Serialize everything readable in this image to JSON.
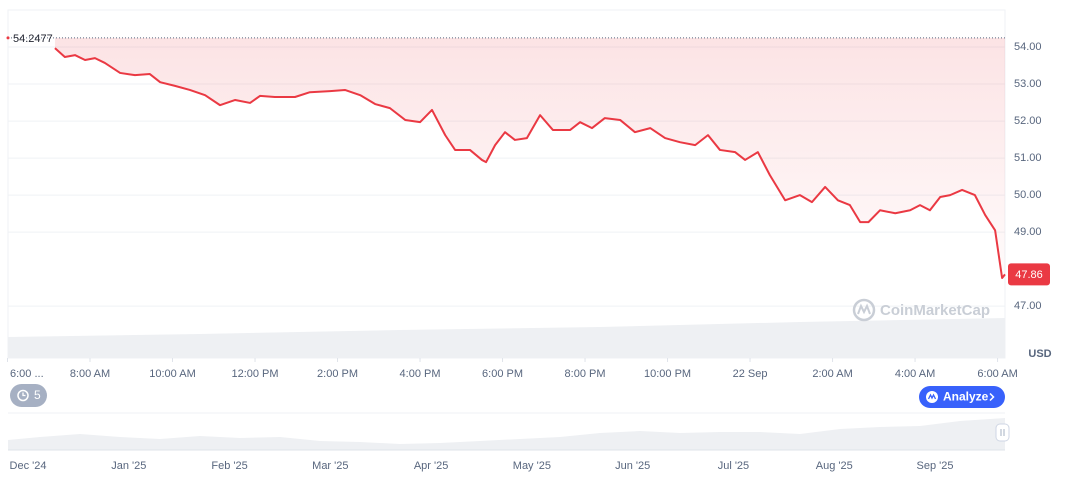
{
  "chart_data": {
    "type": "line",
    "x": [
      1.15,
      1.39,
      1.64,
      1.88,
      2.12,
      2.36,
      2.73,
      3.09,
      3.45,
      3.7,
      4.06,
      4.42,
      4.79,
      5.15,
      5.52,
      5.88,
      6.12,
      6.48,
      6.97,
      7.33,
      7.82,
      8.18,
      8.55,
      8.91,
      9.27,
      9.64,
      10.0,
      10.29,
      10.61,
      10.85,
      11.21,
      11.5,
      11.6,
      11.82,
      12.06,
      12.3,
      12.59,
      12.91,
      13.22,
      13.64,
      13.88,
      14.17,
      14.48,
      14.85,
      15.21,
      15.58,
      15.94,
      16.3,
      16.67,
      16.98,
      17.27,
      17.64,
      17.88,
      18.19,
      18.48,
      18.85,
      19.21,
      19.5,
      19.82,
      20.13,
      20.42,
      20.67,
      20.87,
      21.15,
      21.52,
      21.88,
      22.12,
      22.36,
      22.61,
      22.85,
      23.14,
      23.45,
      23.7,
      23.94,
      24.11,
      24.18
    ],
    "series": [
      {
        "color": "#ea3943",
        "values": [
          53.97,
          53.73,
          53.78,
          53.65,
          53.7,
          53.57,
          53.3,
          53.24,
          53.27,
          53.05,
          52.95,
          52.84,
          52.7,
          52.43,
          52.57,
          52.49,
          52.68,
          52.65,
          52.65,
          52.78,
          52.81,
          52.84,
          52.7,
          52.46,
          52.35,
          52.03,
          51.97,
          52.3,
          51.62,
          51.22,
          51.22,
          50.95,
          50.89,
          51.35,
          51.7,
          51.49,
          51.54,
          52.16,
          51.76,
          51.76,
          51.97,
          51.81,
          52.08,
          52.03,
          51.7,
          51.81,
          51.54,
          51.43,
          51.35,
          51.62,
          51.22,
          51.16,
          50.95,
          51.16,
          50.54,
          49.86,
          50.0,
          49.81,
          50.22,
          49.86,
          49.73,
          49.27,
          49.27,
          49.59,
          49.51,
          49.59,
          49.73,
          49.59,
          49.95,
          50.0,
          50.14,
          50.0,
          49.46,
          49.05,
          47.76,
          47.86
        ]
      }
    ],
    "xlim": [
      0,
      24.18
    ],
    "xticks": [
      {
        "value": 0,
        "label": "6:00 ..."
      },
      {
        "value": 2,
        "label": "8:00 AM"
      },
      {
        "value": 4,
        "label": "10:00 AM"
      },
      {
        "value": 6,
        "label": "12:00 PM"
      },
      {
        "value": 8,
        "label": "2:00 PM"
      },
      {
        "value": 10,
        "label": "4:00 PM"
      },
      {
        "value": 12,
        "label": "6:00 PM"
      },
      {
        "value": 14,
        "label": "8:00 PM"
      },
      {
        "value": 16,
        "label": "10:00 PM"
      },
      {
        "value": 18,
        "label": "22 Sep"
      },
      {
        "value": 20,
        "label": "2:00 AM"
      },
      {
        "value": 22,
        "label": "4:00 AM"
      },
      {
        "value": 24,
        "label": "6:00 AM"
      }
    ],
    "ylim": [
      45.6,
      55
    ],
    "yticks": [
      {
        "value": 47,
        "label": "47.00"
      },
      {
        "value": 49,
        "label": "49.00"
      },
      {
        "value": 50,
        "label": "50.00"
      },
      {
        "value": 51,
        "label": "51.00"
      },
      {
        "value": 52,
        "label": "52.00"
      },
      {
        "value": 53,
        "label": "53.00"
      },
      {
        "value": 54,
        "label": "54.00"
      }
    ],
    "y_unit": "USD",
    "reference_line": {
      "value": 54.2477,
      "label": "54.2477"
    },
    "last_value": 47.86,
    "watermark": "CoinMarketCap",
    "grid": true
  },
  "controls": {
    "history_count": 5,
    "analyze": "Analyze"
  },
  "navigator": {
    "labels": [
      "Dec '24",
      "Jan '25",
      "Feb '25",
      "Mar '25",
      "Apr '25",
      "May '25",
      "Jun '25",
      "Jul '25",
      "Aug '25",
      "Sep '25"
    ]
  }
}
